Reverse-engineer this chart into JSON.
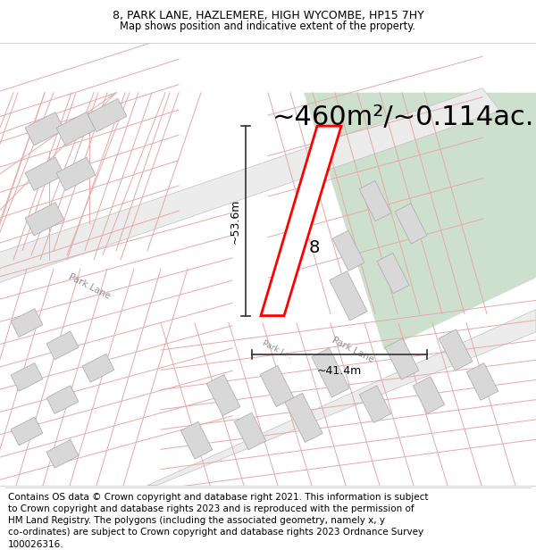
{
  "title_line1": "8, PARK LANE, HAZLEMERE, HIGH WYCOMBE, HP15 7HY",
  "title_line2": "Map shows position and indicative extent of the property.",
  "area_text": "~460m²/~0.114ac.",
  "number_label": "8",
  "dim_vertical": "~53.6m",
  "dim_horizontal": "~41.4m",
  "footer_text": "Contains OS data © Crown copyright and database right 2021. This information is subject\nto Crown copyright and database rights 2023 and is reproduced with the permission of\nHM Land Registry. The polygons (including the associated geometry, namely x, y\nco-ordinates) are subject to Crown copyright and database rights 2023 Ordnance Survey\n100026316.",
  "bg_map_color": "#f7f7f5",
  "bg_green_color": "#cde0cd",
  "parcel_line_color": "#e8a8a8",
  "parcel_face_color": "#f8f8f8",
  "building_face_color": "#d8d8d8",
  "building_edge_color": "#b0b0b0",
  "road_fill_color": "#ececec",
  "road_edge_color": "#c0c0c0",
  "highlight_color": "#ff0000",
  "dim_line_color": "#303030",
  "text_color": "#000000",
  "road_label_color": "#909090",
  "title_fontsize": 9,
  "area_fontsize": 22,
  "footer_fontsize": 7.5
}
